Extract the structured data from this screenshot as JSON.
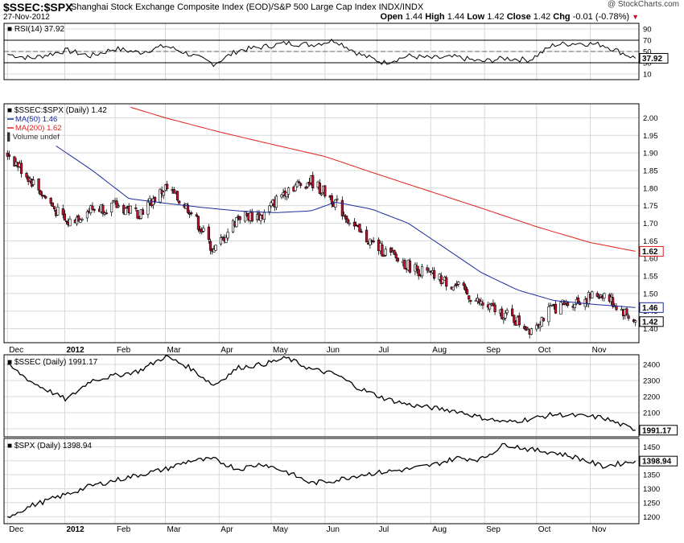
{
  "header": {
    "symbol": "$SSEC:$SPX",
    "description": "Shanghai Stock Exchange Composite Index (EOD)/S&P 500 Large Cap Index  INDX/INDX",
    "date": "27-Nov-2012",
    "watermark": "@ StockCharts.com",
    "quote": {
      "open_label": "Open",
      "open": "1.44",
      "high_label": "High",
      "high": "1.44",
      "low_label": "Low",
      "low": "1.42",
      "close_label": "Close",
      "close": "1.42",
      "chg_label": "Chg",
      "chg": "-0.01 (-0.78%)"
    }
  },
  "colors": {
    "ma50": "#1c2c9c",
    "ma200": "#e0201a",
    "down_candle": "#c8102e",
    "grid": "#d8d8d8"
  },
  "chart_data": [
    {
      "type": "line",
      "panel": "rsi",
      "legend": "RSI(14) 37.92",
      "last_label": "37.92",
      "ylim": [
        0,
        100
      ],
      "ticks": [
        10,
        30,
        50,
        70,
        90
      ],
      "reference_lines": [
        30,
        50,
        70
      ],
      "x": [
        "2011-12-01",
        "2011-12-15",
        "2012-01-04",
        "2012-01-18",
        "2012-02-01",
        "2012-02-15",
        "2012-03-01",
        "2012-03-15",
        "2012-03-29",
        "2012-04-12",
        "2012-04-26",
        "2012-05-10",
        "2012-05-24",
        "2012-06-07",
        "2012-06-21",
        "2012-07-05",
        "2012-07-19",
        "2012-08-02",
        "2012-08-16",
        "2012-08-30",
        "2012-09-13",
        "2012-09-27",
        "2012-10-11",
        "2012-10-25",
        "2012-11-08",
        "2012-11-27"
      ],
      "values": [
        45,
        38,
        52,
        42,
        55,
        48,
        60,
        45,
        28,
        52,
        58,
        65,
        62,
        70,
        45,
        30,
        42,
        38,
        40,
        32,
        38,
        35,
        62,
        65,
        62,
        37.92
      ]
    },
    {
      "type": "candlestick",
      "panel": "price",
      "legend": "$SSEC:$SPX (Daily) 1.42",
      "last_label": "1.42",
      "ylim": [
        1.36,
        2.04
      ],
      "ticks": [
        1.4,
        1.45,
        1.5,
        1.55,
        1.6,
        1.65,
        1.7,
        1.75,
        1.8,
        1.85,
        1.9,
        1.95,
        2.0
      ],
      "volume_label": "Volume undef",
      "x": [
        "2011-12-01",
        "2011-12-15",
        "2012-01-04",
        "2012-01-18",
        "2012-02-01",
        "2012-02-15",
        "2012-03-01",
        "2012-03-15",
        "2012-03-29",
        "2012-04-12",
        "2012-04-26",
        "2012-05-10",
        "2012-05-24",
        "2012-06-07",
        "2012-06-21",
        "2012-07-05",
        "2012-07-19",
        "2012-08-02",
        "2012-08-16",
        "2012-08-30",
        "2012-09-13",
        "2012-09-27",
        "2012-10-11",
        "2012-10-25",
        "2012-11-08",
        "2012-11-27"
      ],
      "values": [
        1.9,
        1.82,
        1.7,
        1.74,
        1.75,
        1.73,
        1.8,
        1.74,
        1.62,
        1.72,
        1.72,
        1.8,
        1.82,
        1.76,
        1.67,
        1.62,
        1.58,
        1.55,
        1.52,
        1.47,
        1.44,
        1.4,
        1.46,
        1.48,
        1.5,
        1.42
      ],
      "series": [
        {
          "name": "MA(50) 1.46",
          "last_label": "1.46",
          "x": [
            "2011-12-29",
            "2012-01-19",
            "2012-02-09",
            "2012-03-01",
            "2012-03-22",
            "2012-04-12",
            "2012-05-03",
            "2012-05-24",
            "2012-06-07",
            "2012-06-28",
            "2012-07-19",
            "2012-08-09",
            "2012-08-30",
            "2012-09-20",
            "2012-10-11",
            "2012-11-01",
            "2012-11-27"
          ],
          "values": [
            1.92,
            1.85,
            1.77,
            1.757,
            1.745,
            1.735,
            1.73,
            1.735,
            1.76,
            1.74,
            1.7,
            1.63,
            1.56,
            1.51,
            1.48,
            1.47,
            1.46
          ]
        },
        {
          "name": "MA(200) 1.62",
          "last_label": "1.62",
          "x": [
            "2012-02-10",
            "2012-03-01",
            "2012-04-01",
            "2012-05-01",
            "2012-06-01",
            "2012-07-01",
            "2012-08-01",
            "2012-09-01",
            "2012-10-01",
            "2012-11-01",
            "2012-11-27"
          ],
          "values": [
            2.03,
            2.0,
            1.96,
            1.925,
            1.89,
            1.84,
            1.79,
            1.74,
            1.69,
            1.645,
            1.62
          ]
        }
      ]
    },
    {
      "type": "line",
      "panel": "ssec",
      "legend": "$SSEC (Daily) 1991.17",
      "last_label": "1991.17",
      "ylim": [
        1950,
        2460
      ],
      "ticks": [
        2000,
        2100,
        2200,
        2300,
        2400
      ],
      "x": [
        "2011-12-01",
        "2011-12-15",
        "2012-01-04",
        "2012-01-18",
        "2012-02-01",
        "2012-02-15",
        "2012-03-01",
        "2012-03-15",
        "2012-03-29",
        "2012-04-12",
        "2012-04-26",
        "2012-05-10",
        "2012-05-24",
        "2012-06-07",
        "2012-06-21",
        "2012-07-05",
        "2012-07-19",
        "2012-08-02",
        "2012-08-16",
        "2012-08-30",
        "2012-09-13",
        "2012-09-27",
        "2012-10-11",
        "2012-10-25",
        "2012-11-08",
        "2012-11-27"
      ],
      "values": [
        2400,
        2290,
        2180,
        2300,
        2330,
        2360,
        2450,
        2380,
        2270,
        2380,
        2400,
        2440,
        2370,
        2340,
        2250,
        2190,
        2150,
        2130,
        2110,
        2070,
        2040,
        2060,
        2090,
        2080,
        2070,
        1991.17
      ]
    },
    {
      "type": "line",
      "panel": "spx",
      "legend": "$SPX (Daily) 1398.94",
      "last_label": "1398.94",
      "ylim": [
        1175,
        1480
      ],
      "ticks": [
        1200,
        1250,
        1300,
        1350,
        1400,
        1450
      ],
      "x": [
        "2011-12-01",
        "2011-12-15",
        "2012-01-04",
        "2012-01-18",
        "2012-02-01",
        "2012-02-15",
        "2012-03-01",
        "2012-03-15",
        "2012-03-29",
        "2012-04-12",
        "2012-04-26",
        "2012-05-10",
        "2012-05-24",
        "2012-06-07",
        "2012-06-21",
        "2012-07-05",
        "2012-07-19",
        "2012-08-02",
        "2012-08-16",
        "2012-08-30",
        "2012-09-13",
        "2012-09-27",
        "2012-10-11",
        "2012-10-25",
        "2012-11-08",
        "2012-11-27"
      ],
      "values": [
        1200,
        1240,
        1280,
        1310,
        1330,
        1350,
        1370,
        1400,
        1405,
        1370,
        1390,
        1360,
        1320,
        1330,
        1350,
        1360,
        1370,
        1385,
        1410,
        1405,
        1460,
        1440,
        1430,
        1410,
        1380,
        1398.94
      ]
    }
  ],
  "x_axis": {
    "labels": [
      "Dec",
      "2012",
      "Feb",
      "Mar",
      "Apr",
      "May",
      "Jun",
      "Jul",
      "Aug",
      "Sep",
      "Oct",
      "Nov"
    ],
    "bold_index": 1,
    "dates": [
      "2011-12-01",
      "2012-01-03",
      "2012-02-01",
      "2012-03-01",
      "2012-04-01",
      "2012-05-01",
      "2012-06-01",
      "2012-07-01",
      "2012-08-01",
      "2012-09-01",
      "2012-10-01",
      "2012-11-01"
    ]
  }
}
